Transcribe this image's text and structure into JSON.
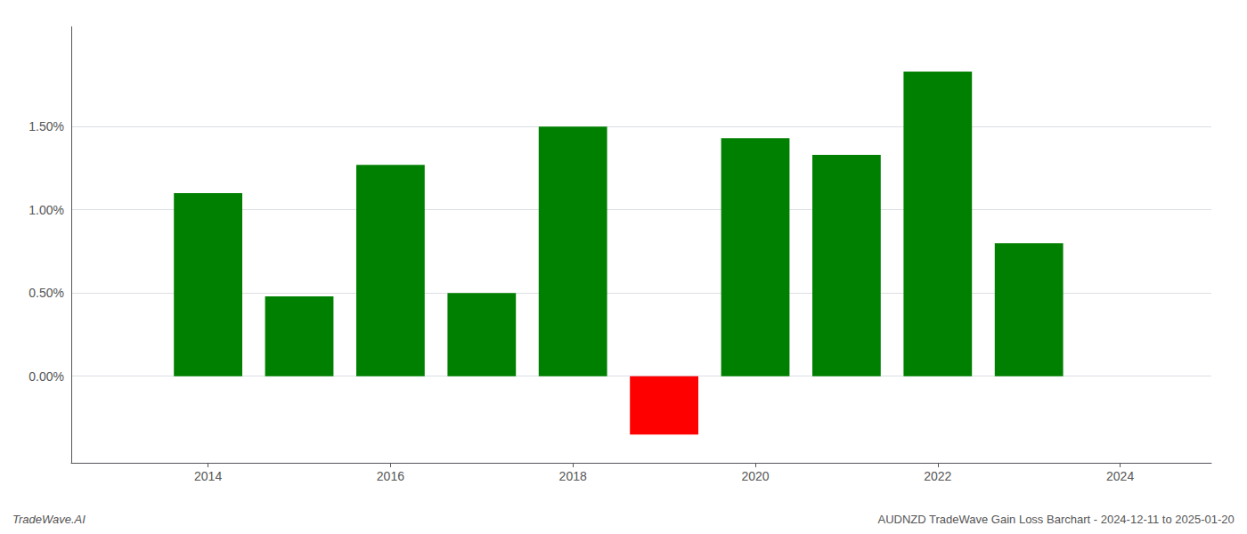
{
  "chart_data": {
    "type": "bar",
    "x": [
      2014,
      2015,
      2016,
      2017,
      2018,
      2019,
      2020,
      2021,
      2022,
      2023
    ],
    "values": [
      1.1,
      0.48,
      1.27,
      0.5,
      1.5,
      -0.35,
      1.43,
      1.33,
      1.83,
      0.8
    ],
    "colors": [
      "#008000",
      "#008000",
      "#008000",
      "#008000",
      "#008000",
      "#ff0000",
      "#008000",
      "#008000",
      "#008000",
      "#008000"
    ],
    "xlim": [
      2012.5,
      2025.0
    ],
    "xticks": [
      2014,
      2016,
      2018,
      2020,
      2022,
      2024
    ],
    "ylim": [
      -0.52,
      2.1
    ],
    "yticks": [
      {
        "value": 0.0,
        "label": "0.00%"
      },
      {
        "value": 0.5,
        "label": "0.50%"
      },
      {
        "value": 1.0,
        "label": "1.00%"
      },
      {
        "value": 1.5,
        "label": "1.50%"
      }
    ],
    "grid": true,
    "annotations": [
      "TradeWave.AI",
      "AUDNZD TradeWave Gain Loss Barchart - 2024-12-11 to 2025-01-20"
    ]
  }
}
